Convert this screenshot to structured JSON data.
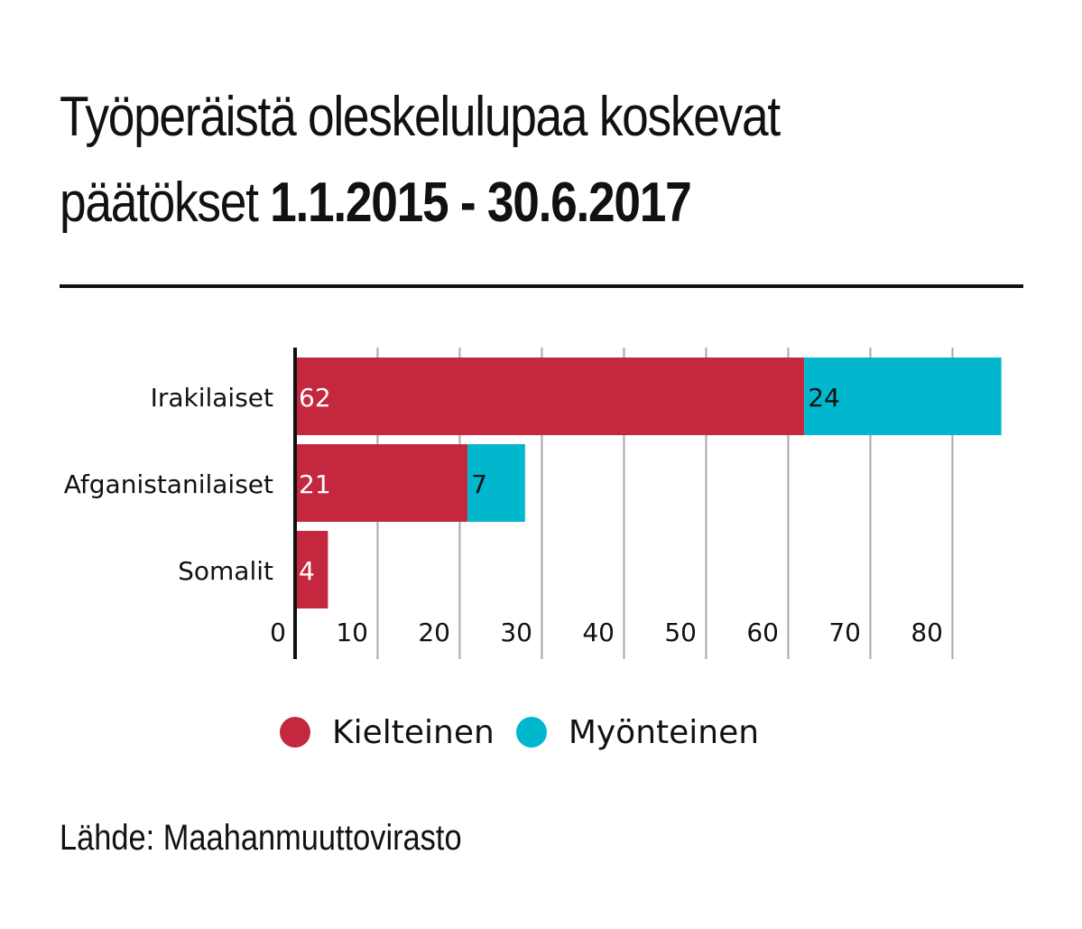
{
  "header": {
    "title_line1": "Työperäistä oleskelulupaa koskevat",
    "title_line2_prefix": "päätökset ",
    "title_line2_dates": "1.1.2015 - 30.6.2017"
  },
  "source": "Lähde: Maahanmuuttovirasto",
  "colors": {
    "kielteinen": "#c4283f",
    "myonteinen": "#00b7ce",
    "grid": "#a8a8a8",
    "axis": "#111111"
  },
  "chart_data": {
    "type": "bar",
    "orientation": "horizontal",
    "stacked": true,
    "categories": [
      "Irakilaiset",
      "Afganistanilaiset",
      "Somalit"
    ],
    "series": [
      {
        "name": "Kielteinen",
        "values": [
          62,
          21,
          4
        ],
        "labels": [
          "62",
          "21",
          "4"
        ]
      },
      {
        "name": "Myönteinen",
        "values": [
          24,
          7,
          0
        ],
        "labels": [
          "24",
          "7",
          ""
        ]
      }
    ],
    "xlim": [
      0,
      90
    ],
    "xticks": [
      0,
      10,
      20,
      30,
      40,
      50,
      60,
      70,
      80
    ],
    "xtick_labels": [
      "0",
      "10",
      "20",
      "30",
      "40",
      "50",
      "60",
      "70",
      "80"
    ],
    "grid": true,
    "legend_position": "bottom"
  }
}
